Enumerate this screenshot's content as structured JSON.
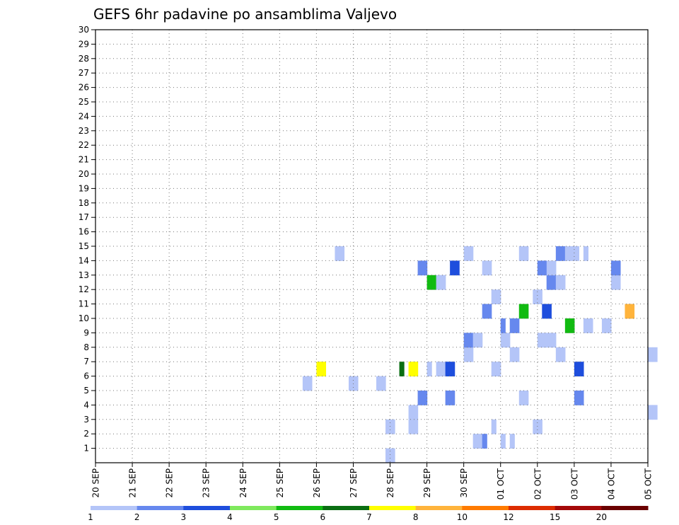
{
  "chart_data": {
    "type": "heatmap",
    "title": "GEFS 6hr padavine po ansamblima Valjevo",
    "xlabel": "",
    "ylabel": "",
    "x_tick_labels": [
      "20 SEP",
      "21 SEP",
      "22 SEP",
      "23 SEP",
      "24 SEP",
      "25 SEP",
      "26 SEP",
      "27 SEP",
      "28 SEP",
      "29 SEP",
      "30 SEP",
      "01 OCT",
      "02 OCT",
      "03 OCT",
      "04 OCT",
      "05 OCT"
    ],
    "y_tick_labels": [
      "1",
      "2",
      "3",
      "4",
      "5",
      "6",
      "7",
      "8",
      "9",
      "10",
      "11",
      "12",
      "13",
      "14",
      "15",
      "16",
      "17",
      "18",
      "19",
      "20",
      "21",
      "22",
      "23",
      "24",
      "25",
      "26",
      "27",
      "28",
      "29",
      "30"
    ],
    "x_unit": "6-hour steps from 20 SEP 00Z",
    "xlim": [
      0,
      60
    ],
    "ylim": [
      0,
      30
    ],
    "grid": true,
    "colorbar": {
      "levels": [
        "1",
        "2",
        "3",
        "4",
        "5",
        "6",
        "7",
        "8",
        "10",
        "12",
        "15",
        "20"
      ],
      "colors": [
        "#b4c5f8",
        "#6688ee",
        "#1e4edd",
        "#7fe95d",
        "#11bb11",
        "#0a6e12",
        "#ffff00",
        "#ffb43c",
        "#ff7b00",
        "#dd2c00",
        "#a40808",
        "#6a0000"
      ]
    },
    "cells": [
      {
        "x": 31.5,
        "y": 0,
        "c": 1
      },
      {
        "x": 32,
        "y": 0,
        "c": 1
      },
      {
        "x": 41,
        "y": 1,
        "c": 1
      },
      {
        "x": 41.5,
        "y": 1,
        "c": 1
      },
      {
        "x": 42,
        "y": 1,
        "c": 2
      },
      {
        "x": 44,
        "y": 1,
        "c": 1
      },
      {
        "x": 45,
        "y": 1,
        "c": 1
      },
      {
        "x": 31.5,
        "y": 2,
        "c": 1
      },
      {
        "x": 32,
        "y": 2,
        "c": 1
      },
      {
        "x": 34,
        "y": 2,
        "c": 1
      },
      {
        "x": 34.5,
        "y": 2,
        "c": 1
      },
      {
        "x": 43,
        "y": 2,
        "c": 1
      },
      {
        "x": 47.5,
        "y": 2,
        "c": 1
      },
      {
        "x": 48,
        "y": 2,
        "c": 1
      },
      {
        "x": 34,
        "y": 3,
        "c": 1
      },
      {
        "x": 34.5,
        "y": 3,
        "c": 1
      },
      {
        "x": 60,
        "y": 3,
        "c": 1
      },
      {
        "x": 60.5,
        "y": 3,
        "c": 1
      },
      {
        "x": 35,
        "y": 4,
        "c": 2
      },
      {
        "x": 35.5,
        "y": 4,
        "c": 2
      },
      {
        "x": 38,
        "y": 4,
        "c": 2
      },
      {
        "x": 38.5,
        "y": 4,
        "c": 2
      },
      {
        "x": 46,
        "y": 4,
        "c": 1
      },
      {
        "x": 46.5,
        "y": 4,
        "c": 1
      },
      {
        "x": 52,
        "y": 4,
        "c": 2
      },
      {
        "x": 52.5,
        "y": 4,
        "c": 2
      },
      {
        "x": 22.5,
        "y": 5,
        "c": 1
      },
      {
        "x": 23,
        "y": 5,
        "c": 1
      },
      {
        "x": 27.5,
        "y": 5,
        "c": 1
      },
      {
        "x": 28,
        "y": 5,
        "c": 1
      },
      {
        "x": 30.5,
        "y": 5,
        "c": 1
      },
      {
        "x": 31,
        "y": 5,
        "c": 1
      },
      {
        "x": 24,
        "y": 6,
        "c": 7
      },
      {
        "x": 24.5,
        "y": 6,
        "c": 7
      },
      {
        "x": 33,
        "y": 6,
        "c": 6
      },
      {
        "x": 34,
        "y": 6,
        "c": 7
      },
      {
        "x": 34.5,
        "y": 6,
        "c": 7
      },
      {
        "x": 36,
        "y": 6,
        "c": 1
      },
      {
        "x": 37,
        "y": 6,
        "c": 1
      },
      {
        "x": 37.5,
        "y": 6,
        "c": 1
      },
      {
        "x": 38,
        "y": 6,
        "c": 3
      },
      {
        "x": 38.5,
        "y": 6,
        "c": 3
      },
      {
        "x": 43,
        "y": 6,
        "c": 1
      },
      {
        "x": 43.5,
        "y": 6,
        "c": 1
      },
      {
        "x": 52,
        "y": 6,
        "c": 3
      },
      {
        "x": 52.5,
        "y": 6,
        "c": 3
      },
      {
        "x": 40,
        "y": 7,
        "c": 1
      },
      {
        "x": 40.5,
        "y": 7,
        "c": 1
      },
      {
        "x": 45,
        "y": 7,
        "c": 1
      },
      {
        "x": 45.5,
        "y": 7,
        "c": 1
      },
      {
        "x": 50,
        "y": 7,
        "c": 1
      },
      {
        "x": 50.5,
        "y": 7,
        "c": 1
      },
      {
        "x": 60,
        "y": 7,
        "c": 1
      },
      {
        "x": 60.5,
        "y": 7,
        "c": 1
      },
      {
        "x": 40,
        "y": 8,
        "c": 2
      },
      {
        "x": 40.5,
        "y": 8,
        "c": 2
      },
      {
        "x": 41,
        "y": 8,
        "c": 1
      },
      {
        "x": 41.5,
        "y": 8,
        "c": 1
      },
      {
        "x": 44,
        "y": 8,
        "c": 1
      },
      {
        "x": 44.5,
        "y": 8,
        "c": 1
      },
      {
        "x": 48,
        "y": 8,
        "c": 1
      },
      {
        "x": 48.5,
        "y": 8,
        "c": 1
      },
      {
        "x": 49,
        "y": 8,
        "c": 1
      },
      {
        "x": 49.5,
        "y": 8,
        "c": 1
      },
      {
        "x": 44,
        "y": 9,
        "c": 2
      },
      {
        "x": 45,
        "y": 9,
        "c": 2
      },
      {
        "x": 45.5,
        "y": 9,
        "c": 2
      },
      {
        "x": 51,
        "y": 9,
        "c": 5
      },
      {
        "x": 51.5,
        "y": 9,
        "c": 5
      },
      {
        "x": 53,
        "y": 9,
        "c": 1
      },
      {
        "x": 53.5,
        "y": 9,
        "c": 1
      },
      {
        "x": 55,
        "y": 9,
        "c": 1
      },
      {
        "x": 55.5,
        "y": 9,
        "c": 1
      },
      {
        "x": 42,
        "y": 10,
        "c": 2
      },
      {
        "x": 42.5,
        "y": 10,
        "c": 2
      },
      {
        "x": 46,
        "y": 10,
        "c": 5
      },
      {
        "x": 46.5,
        "y": 10,
        "c": 5
      },
      {
        "x": 48.5,
        "y": 10,
        "c": 3
      },
      {
        "x": 49,
        "y": 10,
        "c": 3
      },
      {
        "x": 57.5,
        "y": 10,
        "c": 8
      },
      {
        "x": 58,
        "y": 10,
        "c": 8
      },
      {
        "x": 43,
        "y": 11,
        "c": 1
      },
      {
        "x": 43.5,
        "y": 11,
        "c": 1
      },
      {
        "x": 47.5,
        "y": 11,
        "c": 1
      },
      {
        "x": 48,
        "y": 11,
        "c": 1
      },
      {
        "x": 36,
        "y": 12,
        "c": 5
      },
      {
        "x": 36.5,
        "y": 12,
        "c": 5
      },
      {
        "x": 37,
        "y": 12,
        "c": 1
      },
      {
        "x": 37.5,
        "y": 12,
        "c": 1
      },
      {
        "x": 37.5,
        "y": 12,
        "c": 1
      },
      {
        "x": 49,
        "y": 12,
        "c": 2
      },
      {
        "x": 49.5,
        "y": 12,
        "c": 2
      },
      {
        "x": 49,
        "y": 12,
        "c": 2
      },
      {
        "x": 50,
        "y": 12,
        "c": 1
      },
      {
        "x": 50.5,
        "y": 12,
        "c": 1
      },
      {
        "x": 56,
        "y": 12,
        "c": 1
      },
      {
        "x": 56.5,
        "y": 12,
        "c": 1
      },
      {
        "x": 35,
        "y": 13,
        "c": 2
      },
      {
        "x": 35.5,
        "y": 13,
        "c": 2
      },
      {
        "x": 38.5,
        "y": 13,
        "c": 3
      },
      {
        "x": 39,
        "y": 13,
        "c": 3
      },
      {
        "x": 42,
        "y": 13,
        "c": 1
      },
      {
        "x": 42.5,
        "y": 13,
        "c": 1
      },
      {
        "x": 48,
        "y": 13,
        "c": 2
      },
      {
        "x": 48.5,
        "y": 13,
        "c": 2
      },
      {
        "x": 49,
        "y": 13,
        "c": 1
      },
      {
        "x": 49.5,
        "y": 13,
        "c": 1
      },
      {
        "x": 56,
        "y": 13,
        "c": 2
      },
      {
        "x": 56.5,
        "y": 13,
        "c": 2
      },
      {
        "x": 26,
        "y": 14,
        "c": 1
      },
      {
        "x": 26.5,
        "y": 14,
        "c": 1
      },
      {
        "x": 40,
        "y": 14,
        "c": 1
      },
      {
        "x": 40.5,
        "y": 14,
        "c": 1
      },
      {
        "x": 46,
        "y": 14,
        "c": 1
      },
      {
        "x": 46.5,
        "y": 14,
        "c": 1
      },
      {
        "x": 50,
        "y": 14,
        "c": 2
      },
      {
        "x": 50.5,
        "y": 14,
        "c": 2
      },
      {
        "x": 51,
        "y": 14,
        "c": 1
      },
      {
        "x": 51.5,
        "y": 14,
        "c": 1
      },
      {
        "x": 52,
        "y": 14,
        "c": 1
      },
      {
        "x": 53,
        "y": 14,
        "c": 1
      }
    ],
    "cells_note": ""
  }
}
